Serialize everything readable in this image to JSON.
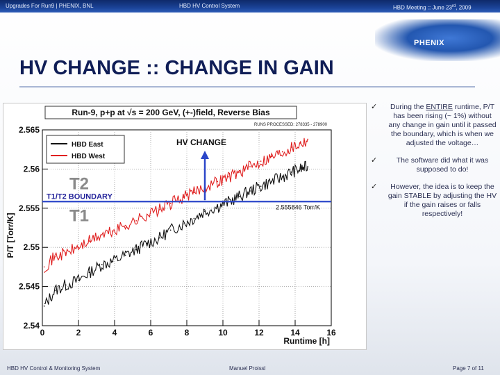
{
  "header": {
    "left": "Upgrades For Run9 | PHENIX, BNL",
    "center": "HBD HV Control System",
    "right_prefix": "HBD Meeting :: June 23",
    "right_sup": "rd",
    "right_suffix": ", 2009"
  },
  "logo": "PHENIX",
  "slide_title": "HV CHANGE :: CHANGE IN GAIN",
  "bullets": [
    {
      "check": "✓",
      "pre": "During the ",
      "emph": "ENTIRE",
      "post": " runtime, P/T has been rising (~ 1%) without any change in gain until it passed the boundary, which is when we adjusted the voltage…"
    },
    {
      "check": "✓",
      "text": "The software did what it was supposed to do!"
    },
    {
      "check": "✓",
      "text": "However, the idea is to keep the gain STABLE by adjusting the HV if the gain raises or falls respectively!"
    }
  ],
  "footer": {
    "left": "HBD HV Control & Monitoring System",
    "center": "Manuel Proissl",
    "right": "Page 7 of 11"
  },
  "chart_data": {
    "type": "line",
    "title": "Run-9, p+p at √s = 200 GeV, (+-)field, Reverse Bias",
    "xlabel": "Runtime [h]",
    "ylabel": "P/T [Torr/K]",
    "xlim": [
      0,
      16
    ],
    "ylim": [
      2.54,
      2.565
    ],
    "xticks": [
      "0",
      "2",
      "4",
      "6",
      "8",
      "10",
      "12",
      "14",
      "16"
    ],
    "yticks": [
      "2.54",
      "2.545",
      "2.55",
      "2.555",
      "2.56",
      "2.565"
    ],
    "legend": [
      "HBD East",
      "HBD West"
    ],
    "legend_location": "top-left",
    "runs_processed": "RUNS PROCESSED: 278335 - 278900",
    "annotations": {
      "hv_change": "HV CHANGE",
      "hv_change_x": 9.0,
      "boundary_label": "T1/T2 BOUNDARY",
      "boundary_value": 2.555846,
      "boundary_readout": "2.555846 Torr/K",
      "region_upper": "T2",
      "region_lower": "T1"
    },
    "series": [
      {
        "name": "HBD East",
        "color": "#111111",
        "x": [
          0.1,
          0.7,
          1.3,
          2.0,
          2.6,
          3.3,
          3.9,
          4.6,
          5.2,
          5.8,
          6.5,
          7.1,
          7.8,
          8.4,
          9.0,
          9.7,
          10.3,
          10.9,
          11.5,
          12.1,
          12.7,
          13.3,
          13.8,
          14.3,
          14.7
        ],
        "y": [
          2.5425,
          2.5445,
          2.5452,
          2.5458,
          2.5468,
          2.5478,
          2.5482,
          2.549,
          2.5497,
          2.5505,
          2.5512,
          2.5522,
          2.553,
          2.5537,
          2.5546,
          2.5552,
          2.5558,
          2.5565,
          2.5572,
          2.5578,
          2.5584,
          2.559,
          2.5596,
          2.56,
          2.5603
        ]
      },
      {
        "name": "HBD West",
        "color": "#e02020",
        "x": [
          0.1,
          0.7,
          1.3,
          2.0,
          2.6,
          3.3,
          3.9,
          4.6,
          5.2,
          5.8,
          6.5,
          7.1,
          7.8,
          8.4,
          9.0,
          9.7,
          10.3,
          10.9,
          11.5,
          12.1,
          12.7,
          13.3,
          13.8,
          14.3,
          14.7
        ],
        "y": [
          2.5475,
          2.5488,
          2.5493,
          2.55,
          2.5508,
          2.5516,
          2.552,
          2.5528,
          2.5534,
          2.5542,
          2.5548,
          2.5556,
          2.5564,
          2.557,
          2.5578,
          2.5584,
          2.559,
          2.5596,
          2.5603,
          2.561,
          2.5616,
          2.5622,
          2.5628,
          2.5633,
          2.5638
        ]
      }
    ]
  }
}
